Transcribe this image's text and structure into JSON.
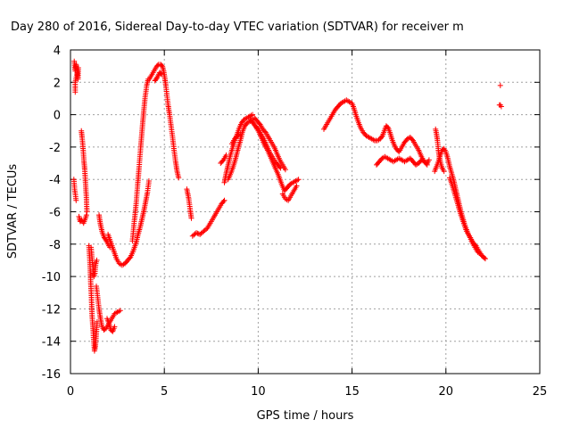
{
  "chart_data": {
    "type": "scatter",
    "title": "Day 280 of 2016, Sidereal Day-to-day VTEC variation (SDTVAR) for receiver m",
    "xlabel": "GPS time / hours",
    "ylabel": "SDTVAR / TECUs",
    "xlim": [
      0,
      25
    ],
    "ylim": [
      -16,
      4
    ],
    "xticks": [
      0,
      5,
      10,
      15,
      20,
      25
    ],
    "yticks": [
      -16,
      -14,
      -12,
      -10,
      -8,
      -6,
      -4,
      -2,
      0,
      2,
      4
    ],
    "grid": true,
    "marker": "plus",
    "color": "#ff0000",
    "segments": [
      [
        [
          0.18,
          -4.0
        ],
        [
          0.22,
          -4.6
        ],
        [
          0.3,
          -5.3
        ]
      ],
      [
        [
          0.2,
          3.3
        ],
        [
          0.25,
          2.7
        ],
        [
          0.3,
          3.1
        ],
        [
          0.35,
          2.7
        ],
        [
          0.4,
          2.2
        ],
        [
          0.42,
          2.9
        ],
        [
          0.25,
          2.0
        ],
        [
          0.25,
          1.4
        ]
      ],
      [
        [
          0.45,
          -6.3
        ],
        [
          0.52,
          -6.6
        ],
        [
          0.6,
          -6.5
        ],
        [
          0.7,
          -6.7
        ],
        [
          0.8,
          -6.4
        ],
        [
          0.85,
          -6.2
        ]
      ],
      [
        [
          0.58,
          -1.0
        ],
        [
          0.62,
          -1.4
        ],
        [
          0.68,
          -2.2
        ],
        [
          0.72,
          -2.9
        ],
        [
          0.76,
          -3.4
        ],
        [
          0.8,
          -4.2
        ],
        [
          0.84,
          -5.0
        ],
        [
          0.88,
          -6.0
        ]
      ],
      [
        [
          0.98,
          -8.1
        ],
        [
          1.02,
          -8.8
        ],
        [
          1.05,
          -9.5
        ],
        [
          1.08,
          -10.4
        ],
        [
          1.12,
          -11.4
        ],
        [
          1.15,
          -12.4
        ],
        [
          1.2,
          -13.2
        ],
        [
          1.24,
          -14.0
        ],
        [
          1.28,
          -14.6
        ],
        [
          1.33,
          -14.3
        ],
        [
          1.38,
          -13.5
        ],
        [
          1.42,
          -12.8
        ]
      ],
      [
        [
          1.1,
          -8.2
        ],
        [
          1.15,
          -8.9
        ],
        [
          1.2,
          -9.5
        ],
        [
          1.25,
          -10.0
        ],
        [
          1.3,
          -9.8
        ],
        [
          1.35,
          -9.2
        ],
        [
          1.4,
          -9.0
        ]
      ],
      [
        [
          1.38,
          -10.6
        ],
        [
          1.45,
          -11.3
        ],
        [
          1.52,
          -12.0
        ],
        [
          1.6,
          -12.6
        ],
        [
          1.68,
          -13.1
        ],
        [
          1.78,
          -13.3
        ],
        [
          1.9,
          -13.2
        ],
        [
          2.0,
          -13.0
        ],
        [
          2.1,
          -12.8
        ],
        [
          2.2,
          -12.6
        ],
        [
          2.35,
          -12.3
        ],
        [
          2.5,
          -12.2
        ],
        [
          2.65,
          -12.1
        ]
      ],
      [
        [
          1.52,
          -6.2
        ],
        [
          1.6,
          -6.8
        ],
        [
          1.7,
          -7.3
        ],
        [
          1.8,
          -7.6
        ],
        [
          1.92,
          -7.8
        ],
        [
          2.0,
          -8.0
        ],
        [
          2.1,
          -8.2
        ]
      ],
      [
        [
          1.95,
          -12.6
        ],
        [
          2.05,
          -12.9
        ],
        [
          2.15,
          -13.3
        ],
        [
          2.25,
          -13.4
        ],
        [
          2.35,
          -13.1
        ]
      ],
      [
        [
          2.0,
          -7.4
        ],
        [
          2.15,
          -7.9
        ],
        [
          2.3,
          -8.4
        ],
        [
          2.45,
          -8.9
        ],
        [
          2.6,
          -9.2
        ],
        [
          2.75,
          -9.3
        ],
        [
          2.9,
          -9.2
        ],
        [
          3.05,
          -9.0
        ],
        [
          3.2,
          -8.8
        ],
        [
          3.35,
          -8.4
        ],
        [
          3.5,
          -7.9
        ],
        [
          3.6,
          -7.4
        ],
        [
          3.7,
          -7.0
        ],
        [
          3.8,
          -6.5
        ],
        [
          3.9,
          -6.0
        ],
        [
          4.0,
          -5.4
        ],
        [
          4.1,
          -4.8
        ],
        [
          4.18,
          -4.1
        ]
      ],
      [
        [
          3.3,
          -7.8
        ],
        [
          3.4,
          -6.6
        ],
        [
          3.5,
          -5.5
        ],
        [
          3.58,
          -4.3
        ],
        [
          3.66,
          -3.2
        ],
        [
          3.74,
          -2.0
        ],
        [
          3.82,
          -0.9
        ],
        [
          3.9,
          0.2
        ],
        [
          3.98,
          1.1
        ],
        [
          4.06,
          1.8
        ],
        [
          4.14,
          2.2
        ]
      ],
      [
        [
          4.2,
          2.2
        ],
        [
          4.3,
          2.4
        ],
        [
          4.4,
          2.6
        ],
        [
          4.5,
          2.8
        ],
        [
          4.6,
          3.0
        ],
        [
          4.7,
          3.1
        ],
        [
          4.8,
          3.1
        ],
        [
          4.9,
          3.0
        ],
        [
          4.96,
          2.7
        ],
        [
          5.02,
          2.3
        ],
        [
          5.08,
          1.8
        ],
        [
          5.14,
          1.2
        ],
        [
          5.2,
          0.6
        ],
        [
          5.28,
          0.0
        ],
        [
          5.36,
          -0.7
        ],
        [
          5.44,
          -1.4
        ],
        [
          5.52,
          -2.2
        ],
        [
          5.6,
          -2.9
        ],
        [
          5.68,
          -3.5
        ],
        [
          5.76,
          -3.9
        ]
      ],
      [
        [
          4.5,
          2.1
        ],
        [
          4.62,
          2.3
        ],
        [
          4.75,
          2.6
        ],
        [
          4.85,
          2.5
        ]
      ],
      [
        [
          6.2,
          -4.6
        ],
        [
          6.3,
          -5.2
        ],
        [
          6.38,
          -5.9
        ],
        [
          6.44,
          -6.4
        ]
      ],
      [
        [
          6.5,
          -7.5
        ],
        [
          6.7,
          -7.3
        ],
        [
          6.9,
          -7.4
        ],
        [
          7.1,
          -7.2
        ],
        [
          7.3,
          -7.0
        ],
        [
          7.45,
          -6.7
        ],
        [
          7.6,
          -6.4
        ],
        [
          7.75,
          -6.1
        ],
        [
          7.9,
          -5.8
        ],
        [
          8.05,
          -5.5
        ],
        [
          8.2,
          -5.3
        ]
      ],
      [
        [
          8.0,
          -3.0
        ],
        [
          8.15,
          -2.8
        ],
        [
          8.3,
          -2.5
        ]
      ],
      [
        [
          8.2,
          -4.2
        ],
        [
          8.3,
          -3.6
        ],
        [
          8.4,
          -3.1
        ],
        [
          8.5,
          -2.6
        ],
        [
          8.62,
          -2.1
        ],
        [
          8.75,
          -1.6
        ],
        [
          8.88,
          -1.2
        ],
        [
          9.0,
          -0.8
        ],
        [
          9.12,
          -0.5
        ],
        [
          9.25,
          -0.3
        ],
        [
          9.4,
          -0.2
        ],
        [
          9.55,
          -0.1
        ],
        [
          9.7,
          0.0
        ]
      ],
      [
        [
          8.4,
          -4.0
        ],
        [
          8.55,
          -3.6
        ],
        [
          8.7,
          -3.1
        ],
        [
          8.82,
          -2.6
        ],
        [
          8.95,
          -2.0
        ],
        [
          9.05,
          -1.6
        ],
        [
          9.15,
          -1.1
        ],
        [
          9.28,
          -0.7
        ],
        [
          9.42,
          -0.5
        ],
        [
          9.58,
          -0.4
        ],
        [
          9.72,
          -0.3
        ]
      ],
      [
        [
          8.6,
          -1.8
        ],
        [
          8.75,
          -1.5
        ],
        [
          8.9,
          -1.3
        ],
        [
          9.05,
          -1.2
        ]
      ],
      [
        [
          9.6,
          -0.3
        ],
        [
          9.72,
          -0.5
        ],
        [
          9.85,
          -0.7
        ],
        [
          10.0,
          -0.9
        ],
        [
          10.15,
          -1.2
        ],
        [
          10.3,
          -1.5
        ],
        [
          10.45,
          -1.9
        ],
        [
          10.6,
          -2.3
        ],
        [
          10.75,
          -2.6
        ],
        [
          10.9,
          -2.9
        ],
        [
          11.05,
          -3.1
        ],
        [
          11.2,
          -3.3
        ]
      ],
      [
        [
          9.8,
          -0.2
        ],
        [
          9.95,
          -0.4
        ],
        [
          10.1,
          -0.6
        ],
        [
          10.25,
          -0.9
        ],
        [
          10.4,
          -1.1
        ],
        [
          10.55,
          -1.4
        ],
        [
          10.7,
          -1.7
        ],
        [
          10.85,
          -2.0
        ],
        [
          11.0,
          -2.4
        ],
        [
          11.15,
          -2.8
        ],
        [
          11.3,
          -3.1
        ],
        [
          11.45,
          -3.4
        ]
      ],
      [
        [
          9.9,
          -0.8
        ],
        [
          10.05,
          -1.1
        ],
        [
          10.2,
          -1.5
        ],
        [
          10.35,
          -1.9
        ],
        [
          10.5,
          -2.2
        ],
        [
          10.65,
          -2.6
        ],
        [
          10.8,
          -3.0
        ],
        [
          10.95,
          -3.4
        ],
        [
          11.1,
          -3.8
        ],
        [
          11.25,
          -4.3
        ],
        [
          11.4,
          -4.7
        ],
        [
          11.55,
          -4.5
        ],
        [
          11.7,
          -4.3
        ],
        [
          11.85,
          -4.2
        ],
        [
          12.0,
          -4.1
        ],
        [
          12.15,
          -4.0
        ]
      ],
      [
        [
          11.3,
          -4.9
        ],
        [
          11.45,
          -5.2
        ],
        [
          11.6,
          -5.3
        ],
        [
          11.75,
          -5.0
        ],
        [
          11.9,
          -4.7
        ],
        [
          12.05,
          -4.4
        ]
      ],
      [
        [
          13.5,
          -0.9
        ],
        [
          13.65,
          -0.6
        ],
        [
          13.8,
          -0.3
        ],
        [
          13.95,
          0.0
        ],
        [
          14.1,
          0.3
        ],
        [
          14.25,
          0.5
        ],
        [
          14.4,
          0.7
        ],
        [
          14.55,
          0.8
        ],
        [
          14.7,
          0.9
        ],
        [
          14.85,
          0.8
        ],
        [
          15.0,
          0.7
        ],
        [
          15.1,
          0.4
        ],
        [
          15.2,
          0.0
        ],
        [
          15.32,
          -0.4
        ],
        [
          15.45,
          -0.8
        ],
        [
          15.6,
          -1.1
        ],
        [
          15.75,
          -1.3
        ],
        [
          15.9,
          -1.4
        ],
        [
          16.05,
          -1.5
        ],
        [
          16.2,
          -1.6
        ],
        [
          16.35,
          -1.6
        ],
        [
          16.5,
          -1.5
        ],
        [
          16.62,
          -1.3
        ],
        [
          16.72,
          -1.0
        ],
        [
          16.82,
          -0.7
        ],
        [
          16.92,
          -0.8
        ],
        [
          17.02,
          -1.1
        ],
        [
          17.12,
          -1.5
        ],
        [
          17.22,
          -1.8
        ],
        [
          17.35,
          -2.1
        ],
        [
          17.5,
          -2.3
        ],
        [
          17.65,
          -2.0
        ],
        [
          17.8,
          -1.7
        ],
        [
          17.95,
          -1.5
        ],
        [
          18.1,
          -1.4
        ],
        [
          18.25,
          -1.6
        ],
        [
          18.4,
          -1.9
        ],
        [
          18.55,
          -2.2
        ],
        [
          18.7,
          -2.6
        ],
        [
          18.85,
          -2.9
        ],
        [
          19.0,
          -3.1
        ]
      ],
      [
        [
          16.3,
          -3.1
        ],
        [
          16.45,
          -2.9
        ],
        [
          16.6,
          -2.7
        ],
        [
          16.75,
          -2.6
        ],
        [
          16.9,
          -2.7
        ],
        [
          17.05,
          -2.8
        ],
        [
          17.2,
          -2.9
        ],
        [
          17.35,
          -2.8
        ],
        [
          17.5,
          -2.7
        ],
        [
          17.65,
          -2.8
        ],
        [
          17.8,
          -2.9
        ],
        [
          17.95,
          -2.8
        ],
        [
          18.1,
          -2.7
        ],
        [
          18.25,
          -2.9
        ],
        [
          18.4,
          -3.1
        ],
        [
          18.55,
          -3.0
        ],
        [
          18.7,
          -2.8
        ],
        [
          18.85,
          -2.9
        ],
        [
          19.0,
          -3.0
        ],
        [
          19.1,
          -2.8
        ]
      ],
      [
        [
          19.45,
          -0.9
        ],
        [
          19.5,
          -1.2
        ],
        [
          19.55,
          -1.6
        ],
        [
          19.6,
          -2.2
        ],
        [
          19.65,
          -2.6
        ],
        [
          19.72,
          -3.0
        ],
        [
          19.8,
          -3.3
        ],
        [
          19.9,
          -3.5
        ]
      ],
      [
        [
          19.4,
          -3.5
        ],
        [
          19.5,
          -3.2
        ],
        [
          19.6,
          -2.9
        ],
        [
          19.7,
          -2.5
        ],
        [
          19.8,
          -2.2
        ],
        [
          19.9,
          -2.1
        ],
        [
          20.0,
          -2.3
        ],
        [
          20.1,
          -2.7
        ],
        [
          20.2,
          -3.2
        ],
        [
          20.3,
          -3.6
        ],
        [
          20.4,
          -4.0
        ],
        [
          20.5,
          -4.5
        ],
        [
          20.6,
          -5.0
        ],
        [
          20.7,
          -5.5
        ],
        [
          20.8,
          -6.0
        ],
        [
          20.9,
          -6.4
        ],
        [
          21.0,
          -6.8
        ],
        [
          21.1,
          -7.1
        ],
        [
          21.2,
          -7.4
        ],
        [
          21.3,
          -7.6
        ],
        [
          21.4,
          -7.8
        ],
        [
          21.5,
          -8.0
        ],
        [
          21.6,
          -8.1
        ],
        [
          21.7,
          -8.3
        ],
        [
          21.8,
          -8.5
        ],
        [
          21.9,
          -8.7
        ],
        [
          22.0,
          -8.8
        ],
        [
          22.1,
          -8.9
        ]
      ],
      [
        [
          20.2,
          -3.9
        ],
        [
          20.35,
          -4.4
        ],
        [
          20.5,
          -5.0
        ],
        [
          20.65,
          -5.6
        ],
        [
          20.8,
          -6.2
        ],
        [
          20.95,
          -6.7
        ],
        [
          21.1,
          -7.2
        ],
        [
          21.25,
          -7.5
        ],
        [
          21.4,
          -7.9
        ],
        [
          21.55,
          -8.2
        ],
        [
          21.7,
          -8.5
        ],
        [
          21.85,
          -8.6
        ]
      ],
      [
        [
          22.9,
          1.8
        ]
      ],
      [
        [
          22.85,
          0.6
        ],
        [
          22.9,
          0.6
        ],
        [
          22.95,
          0.5
        ]
      ]
    ]
  }
}
